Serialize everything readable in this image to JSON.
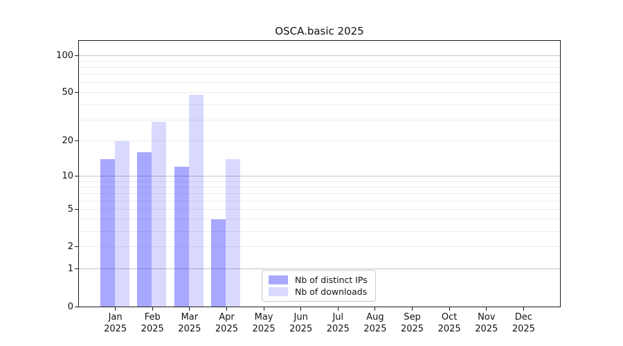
{
  "chart_data": {
    "type": "bar",
    "title": "OSCA.basic 2025",
    "categories": [
      "Jan",
      "Feb",
      "Mar",
      "Apr",
      "May",
      "Jun",
      "Jul",
      "Aug",
      "Sep",
      "Oct",
      "Nov",
      "Dec"
    ],
    "x_sublabel": "2025",
    "series": [
      {
        "name": "Nb of distinct IPs",
        "key": "distinct-ips",
        "color": "rgba(0,0,255,0.34)",
        "values": [
          14,
          16,
          12,
          4,
          null,
          null,
          null,
          null,
          null,
          null,
          null,
          null
        ]
      },
      {
        "name": "Nb of downloads",
        "key": "downloads",
        "color": "rgba(0,0,255,0.15)",
        "values": [
          20,
          29,
          48,
          14,
          null,
          null,
          null,
          null,
          null,
          null,
          null,
          null
        ]
      }
    ],
    "yscale": "log1p",
    "ylim": [
      0,
      100
    ],
    "ytick_values": [
      100,
      50,
      20,
      10,
      5,
      2,
      1,
      0
    ],
    "major_gridlines": [
      1,
      10,
      100
    ],
    "minor_gridlines": [
      2,
      3,
      4,
      5,
      6,
      7,
      8,
      9,
      20,
      30,
      40,
      50,
      60,
      70,
      80,
      90
    ],
    "legend": {
      "position": "lower-center"
    },
    "grid": "on",
    "colors": {
      "major_grid": "#c4c4c4",
      "minor_grid": "#ececec",
      "spine": "#1a1a1a"
    }
  }
}
